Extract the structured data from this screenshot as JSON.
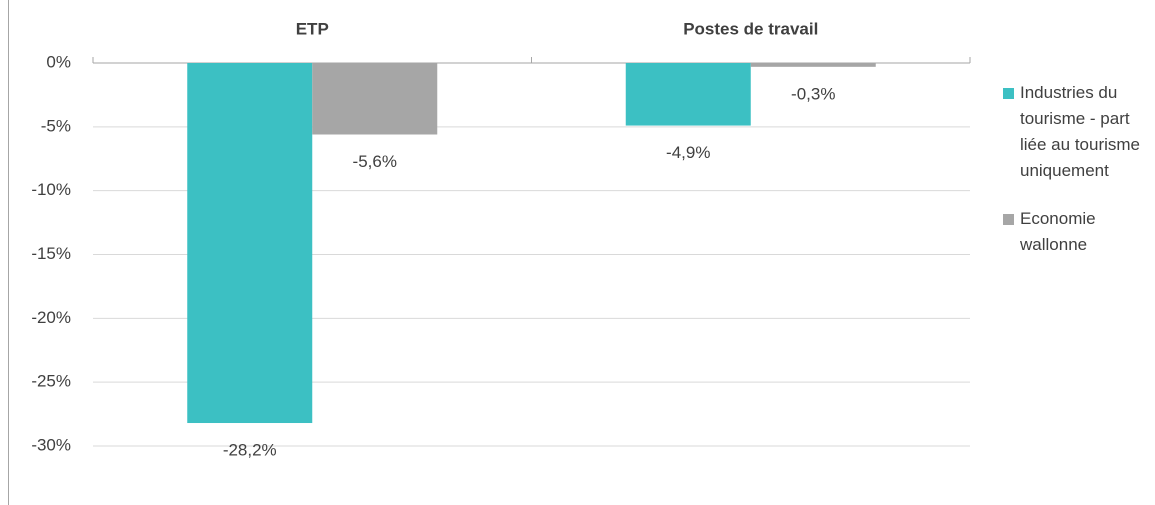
{
  "chart_data": {
    "type": "bar",
    "categories": [
      "ETP",
      "Postes de travail"
    ],
    "series": [
      {
        "name": "Industries du tourisme - part liée au tourisme uniquement",
        "color": "#3cc0c3",
        "values": [
          -28.2,
          -4.9
        ],
        "value_labels": [
          "-28,2%",
          "-4,9%"
        ]
      },
      {
        "name": "Economie wallonne",
        "color": "#a6a6a6",
        "values": [
          -5.6,
          -0.3
        ],
        "value_labels": [
          "-5,6%",
          "-0,3%"
        ]
      }
    ],
    "ylim": [
      -30,
      0
    ],
    "yticks": [
      {
        "value": 0,
        "label": "0%"
      },
      {
        "value": -5,
        "label": "-5%"
      },
      {
        "value": -10,
        "label": "-10%"
      },
      {
        "value": -15,
        "label": "-15%"
      },
      {
        "value": -20,
        "label": "-20%"
      },
      {
        "value": -25,
        "label": "-25%"
      },
      {
        "value": -30,
        "label": "-30%"
      }
    ],
    "grid": true
  }
}
